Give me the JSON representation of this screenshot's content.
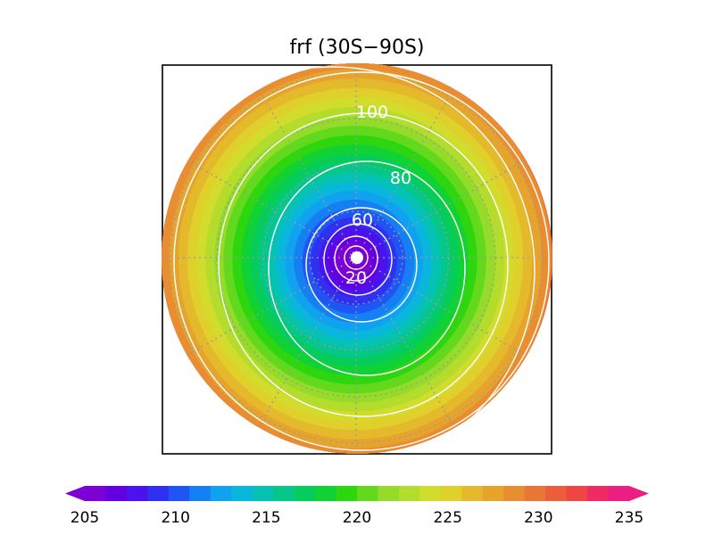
{
  "title": "frf (30S−90S)",
  "map": {
    "projection": "polar-stereographic",
    "hemisphere": "south",
    "lat_range": [
      "30S",
      "90S"
    ]
  },
  "colorbar": {
    "min": 205,
    "max": 235,
    "step": 1.25,
    "extend": "both",
    "tick_labels": [
      "205",
      "210",
      "215",
      "220",
      "225",
      "230",
      "235"
    ],
    "colors": [
      "#7d00d4",
      "#6300e2",
      "#4a12ec",
      "#3030f0",
      "#1f55f5",
      "#1680f3",
      "#10a2f0",
      "#0ab7dc",
      "#05c2b5",
      "#05c78a",
      "#06cc5c",
      "#10d234",
      "#2ed610",
      "#62d91d",
      "#94db2a",
      "#b4dc2c",
      "#d2dc2c",
      "#e0d02c",
      "#e4ba2c",
      "#e6a42d",
      "#e88e30",
      "#ea7635",
      "#ec5d3a",
      "#ee4545",
      "#ee2b62",
      "#ec1f84"
    ]
  },
  "contours": {
    "color": "#ffffff",
    "labels": [
      "100",
      "80",
      "60",
      "20"
    ]
  }
}
